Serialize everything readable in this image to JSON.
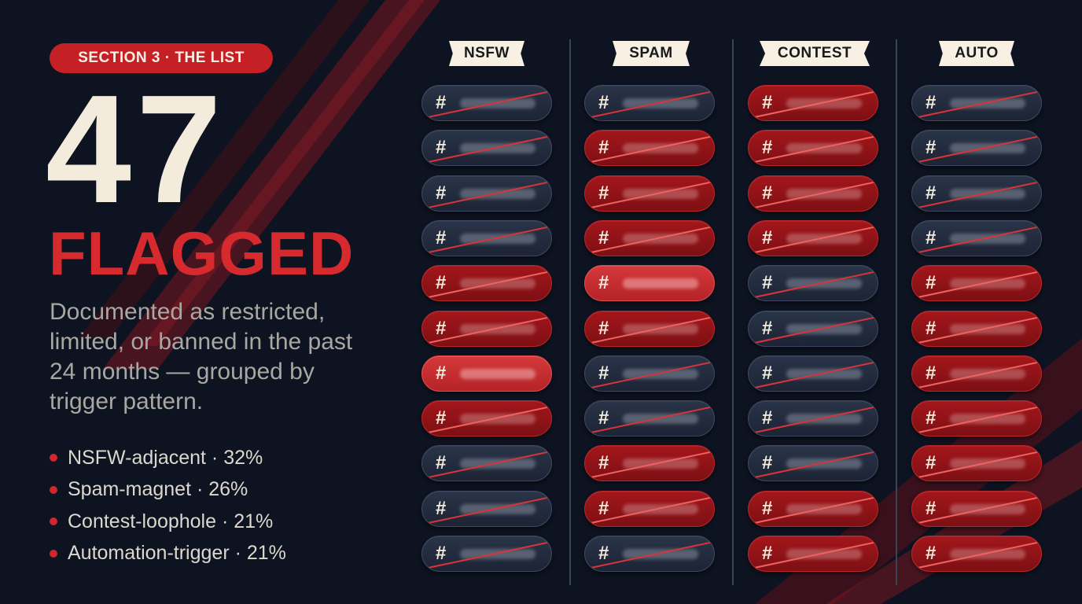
{
  "section_label": "SECTION 3 · THE LIST",
  "count": "47",
  "count_label": "FLAGGED",
  "description": "Documented as restricted, limited, or banned in the past 24 months — grouped by trigger pattern.",
  "stats": [
    {
      "label": "NSFW-adjacent · 32%"
    },
    {
      "label": "Spam-magnet · 26%"
    },
    {
      "label": "Contest-loophole · 21%"
    },
    {
      "label": "Automation-trigger · 21%"
    }
  ],
  "hashtag_symbol": "#",
  "colors": {
    "background": "#0d1320",
    "accent_red": "#c62027",
    "cream": "#f3ecdc",
    "tag_dark": "#222b3d",
    "tag_red": "#8f1418",
    "tag_highlight": "#c9302f"
  },
  "columns": [
    {
      "header": "NSFW",
      "tags": [
        "dark",
        "dark",
        "dark",
        "dark",
        "red",
        "red",
        "bright",
        "red",
        "dark",
        "dark",
        "dark"
      ]
    },
    {
      "header": "SPAM",
      "tags": [
        "dark",
        "red",
        "red",
        "red",
        "bright",
        "red",
        "dark",
        "dark",
        "red",
        "red",
        "dark"
      ]
    },
    {
      "header": "CONTEST",
      "tags": [
        "red",
        "red",
        "red",
        "red",
        "dark",
        "dark",
        "dark",
        "dark",
        "dark",
        "red",
        "red"
      ]
    },
    {
      "header": "AUTO",
      "tags": [
        "dark",
        "dark",
        "dark",
        "dark",
        "red",
        "red",
        "red",
        "red",
        "red",
        "red",
        "red"
      ]
    }
  ]
}
